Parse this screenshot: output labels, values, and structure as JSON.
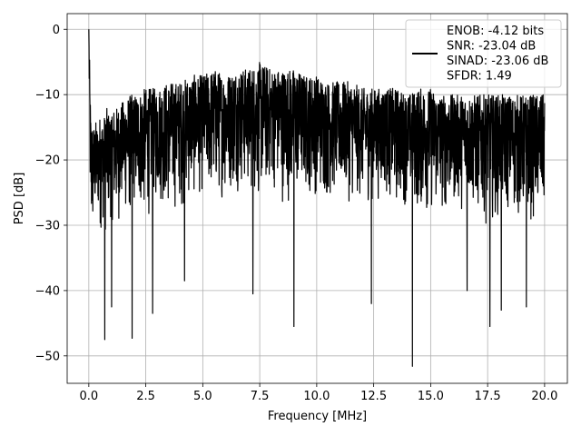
{
  "chart_data": {
    "type": "line",
    "title": "",
    "xlabel": "Frequency [MHz]",
    "ylabel": "PSD [dB]",
    "xlim": [
      -0.95,
      21.0
    ],
    "ylim": [
      -54.2,
      2.4
    ],
    "x_ticks": [
      0.0,
      2.5,
      5.0,
      7.5,
      10.0,
      12.5,
      15.0,
      17.5,
      20.0
    ],
    "x_tick_labels": [
      "0.0",
      "2.5",
      "5.0",
      "7.5",
      "10.0",
      "12.5",
      "15.0",
      "17.5",
      "20.0"
    ],
    "y_ticks": [
      0,
      -10,
      -20,
      -30,
      -40,
      -50
    ],
    "y_tick_labels": [
      "0",
      "−10",
      "−20",
      "−30",
      "−40",
      "−50"
    ],
    "grid": true,
    "legend_position": "upper-right",
    "legend_entries": [
      "ENOB: -4.12 bits",
      "SNR: -23.04 dB",
      "SINAD: -23.06 dB",
      "SFDR: 1.49"
    ],
    "series_color": "#000000",
    "series": [
      {
        "x": [
          0.0,
          0.02,
          0.05,
          0.08,
          0.1,
          0.15,
          0.2,
          0.3,
          0.4,
          0.5,
          0.6,
          0.7,
          0.8,
          0.9,
          1.0,
          1.2,
          1.5,
          1.8,
          2.0,
          2.5,
          3.0,
          3.5,
          4.0,
          4.5,
          5.0,
          5.5,
          6.0,
          6.5,
          7.0,
          7.5,
          8.0,
          8.5,
          9.0,
          9.5,
          10.0,
          10.5,
          11.0,
          11.5,
          12.0,
          12.5,
          13.0,
          13.5,
          14.0,
          14.5,
          15.0,
          15.5,
          16.0,
          16.5,
          17.0,
          17.5,
          18.0,
          18.5,
          19.0,
          19.5,
          20.0
        ],
        "upper": [
          0,
          -2,
          -8,
          -12,
          -13,
          -14,
          -15,
          -14,
          -15,
          -13,
          -14,
          -13,
          -12,
          -13,
          -12,
          -12,
          -11,
          -10,
          -10,
          -9,
          -9,
          -8,
          -8,
          -7,
          -7,
          -6,
          -7,
          -6,
          -6,
          -5,
          -6,
          -6,
          -6,
          -7,
          -7,
          -8,
          -8,
          -8,
          -9,
          -9,
          -9,
          -9,
          -10,
          -9,
          -9,
          -10,
          -10,
          -10,
          -10,
          -10,
          -10,
          -10,
          -10,
          -10,
          -10
        ],
        "lower": [
          -3,
          -16,
          -28,
          -34,
          -36,
          -35,
          -32,
          -31,
          -30,
          -32,
          -30,
          -33,
          -31,
          -30,
          -30,
          -31,
          -29,
          -30,
          -28,
          -30,
          -27,
          -29,
          -28,
          -27,
          -26,
          -27,
          -26,
          -25,
          -26,
          -27,
          -25,
          -27,
          -27,
          -26,
          -26,
          -27,
          -26,
          -27,
          -27,
          -27,
          -26,
          -28,
          -27,
          -29,
          -29,
          -29,
          -28,
          -28,
          -29,
          -30,
          -29,
          -29,
          -30,
          -30,
          -30
        ],
        "dips": [
          {
            "x": 0.7,
            "y": -47.5
          },
          {
            "x": 1.0,
            "y": -42.5
          },
          {
            "x": 1.9,
            "y": -47.3
          },
          {
            "x": 2.8,
            "y": -43.5
          },
          {
            "x": 4.2,
            "y": -38.5
          },
          {
            "x": 7.2,
            "y": -40.5
          },
          {
            "x": 9.0,
            "y": -45.5
          },
          {
            "x": 12.4,
            "y": -42.0
          },
          {
            "x": 14.2,
            "y": -51.6
          },
          {
            "x": 16.6,
            "y": -40.0
          },
          {
            "x": 17.6,
            "y": -45.5
          },
          {
            "x": 18.1,
            "y": -43.0
          },
          {
            "x": 19.2,
            "y": -42.5
          }
        ]
      }
    ]
  }
}
